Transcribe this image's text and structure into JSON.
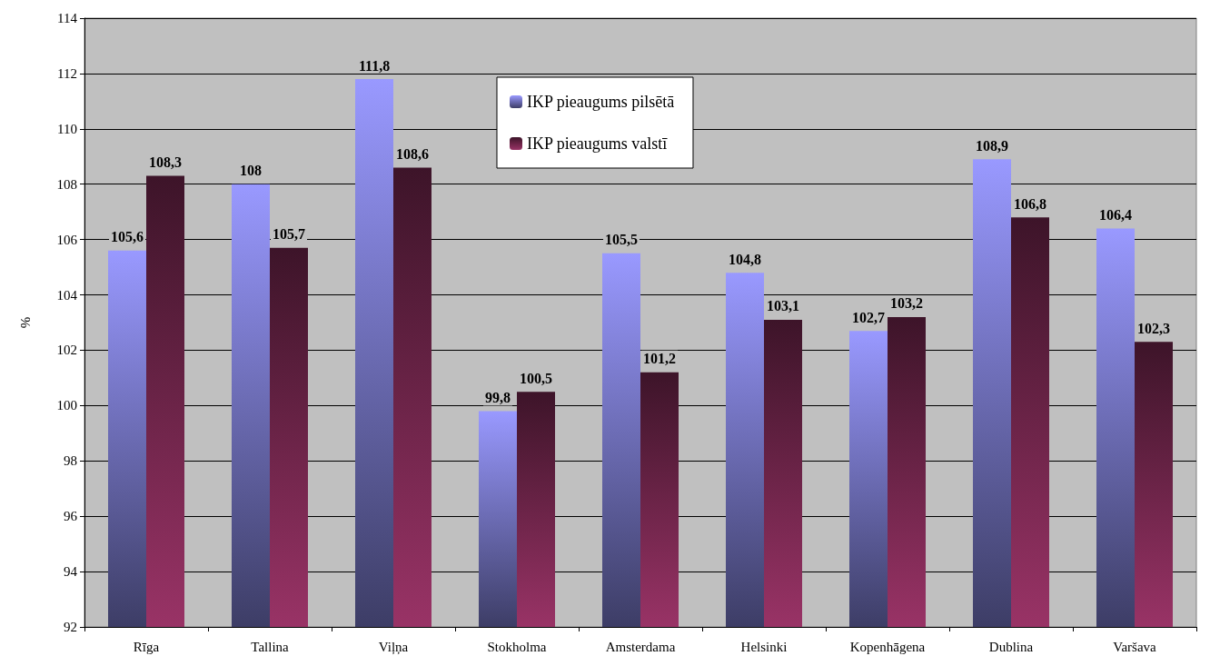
{
  "chart_data": {
    "type": "bar",
    "ylabel": "%",
    "categories": [
      "Rīga",
      "Tallina",
      "Viļņa",
      "Stokholma",
      "Amsterdama",
      "Helsinki",
      "Kopenhāgena",
      "Dublina",
      "Varšava"
    ],
    "series": [
      {
        "name": "IKP pieaugums pilsētā",
        "color": "#9999ff",
        "values": [
          105.6,
          108,
          111.8,
          99.8,
          105.5,
          104.8,
          102.7,
          108.9,
          106.4
        ],
        "value_labels": [
          "105,6",
          "108",
          "111,8",
          "99,8",
          "105,5",
          "104,8",
          "102,7",
          "108,9",
          "106,4"
        ]
      },
      {
        "name": "IKP pieaugums valstī",
        "color": "#993366",
        "values": [
          108.3,
          105.7,
          108.6,
          100.5,
          101.2,
          103.1,
          103.2,
          106.8,
          102.3
        ],
        "value_labels": [
          "108,3",
          "105,7",
          "108,6",
          "100,5",
          "101,2",
          "103,1",
          "103,2",
          "106,8",
          "102,3"
        ]
      }
    ],
    "ylim": [
      92,
      114
    ],
    "yticks": [
      92,
      94,
      96,
      98,
      100,
      102,
      104,
      106,
      108,
      110,
      112,
      114
    ],
    "grid": "y",
    "legend": "top"
  }
}
